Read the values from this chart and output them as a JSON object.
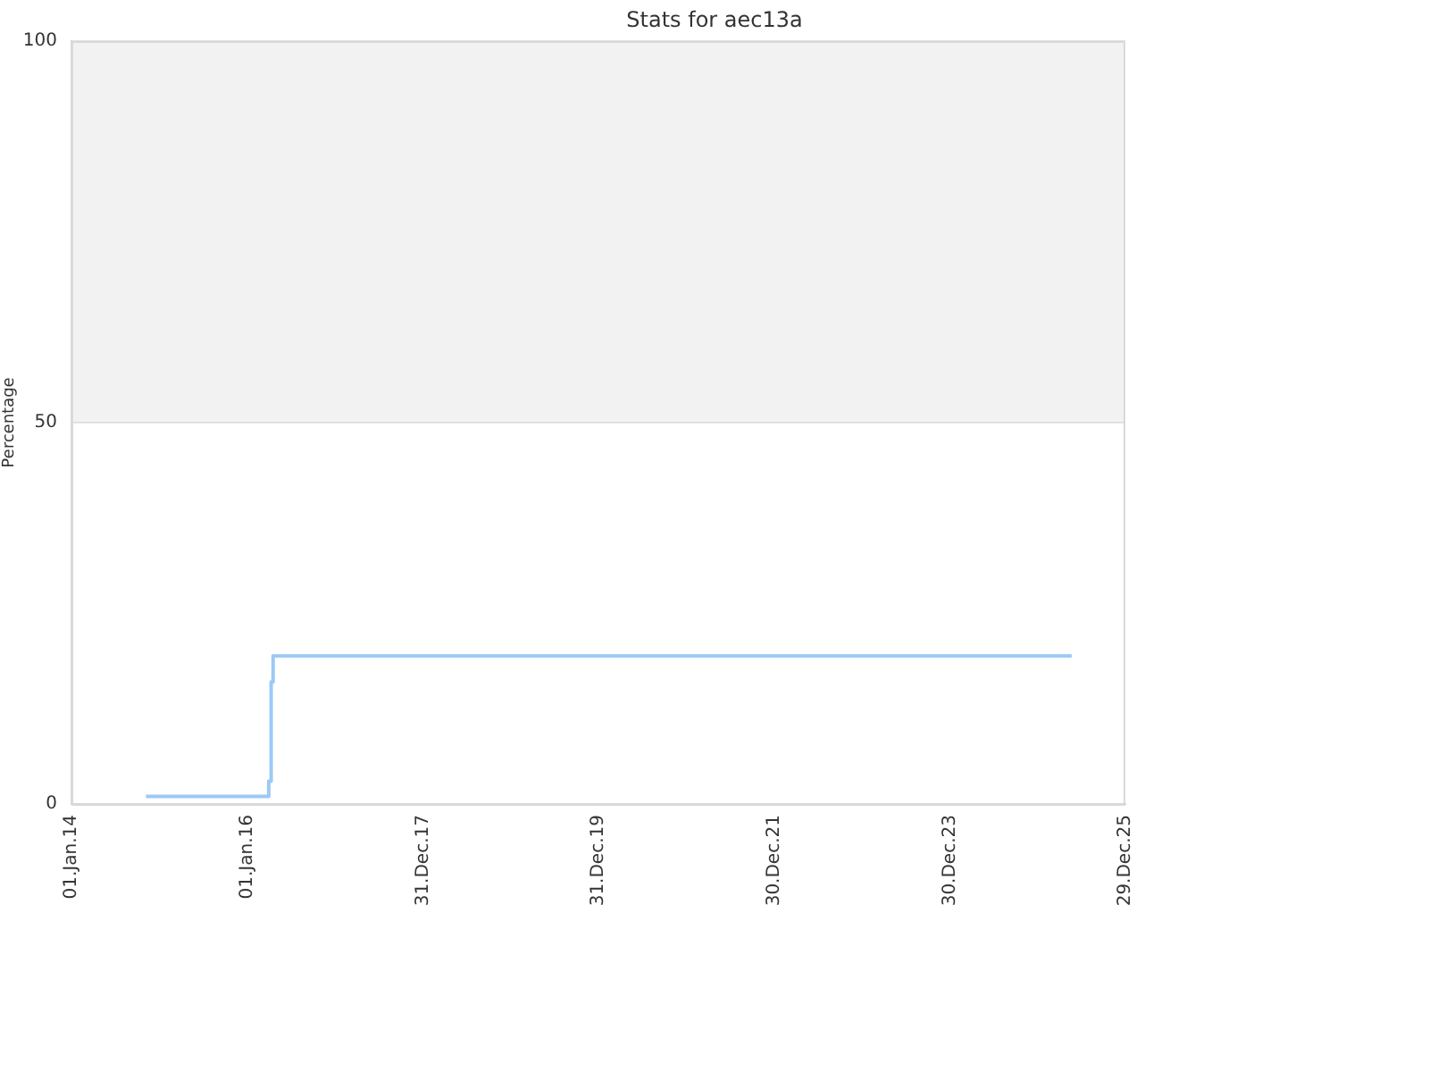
{
  "chart_data": {
    "type": "step",
    "title": "Stats for aec13a",
    "ylabel": "Percentage",
    "series": [
      {
        "color": "#9ccaf5",
        "x": [
          "2014-11-07",
          "2016-03-31",
          "2016-04-10",
          "2016-04-18",
          "2025-05-20"
        ],
        "values": [
          1,
          3,
          16,
          19.4,
          19.4
        ]
      }
    ],
    "xlim": [
      "2014-01-01",
      "2025-12-29"
    ],
    "xticks": [
      {
        "value": "2014-01-01",
        "label": "01.Jan.14"
      },
      {
        "value": "2016-01-01",
        "label": "01.Jan.16"
      },
      {
        "value": "2017-12-31",
        "label": "31.Dec.17"
      },
      {
        "value": "2019-12-31",
        "label": "31.Dec.19"
      },
      {
        "value": "2021-12-30",
        "label": "30.Dec.21"
      },
      {
        "value": "2023-12-30",
        "label": "30.Dec.23"
      },
      {
        "value": "2025-12-29",
        "label": "29.Dec.25"
      }
    ],
    "ylim": [
      0,
      100
    ],
    "yticks": [
      0,
      50,
      100
    ],
    "bands": [
      {
        "axis": "y",
        "from": 50,
        "to": 100,
        "color": "#f2f2f2"
      }
    ],
    "grid": "y",
    "legend": false
  }
}
